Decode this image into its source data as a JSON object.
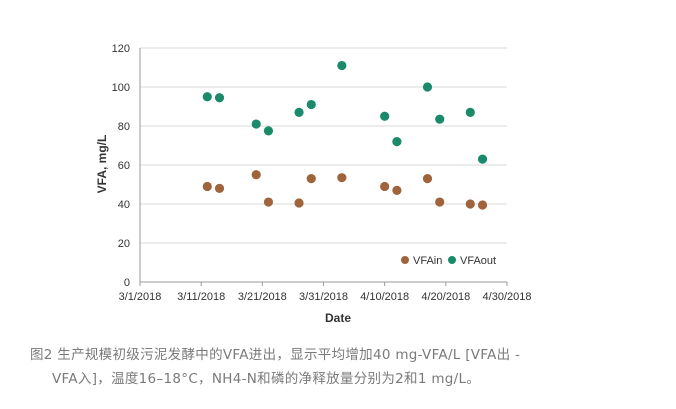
{
  "chart_data": {
    "type": "scatter",
    "xlabel": "Date",
    "ylabel": "VFA, mg/L",
    "ylim": [
      0,
      120
    ],
    "yticks": [
      0,
      20,
      40,
      60,
      80,
      100,
      120
    ],
    "xlim": [
      "2018-03-01",
      "2018-04-30"
    ],
    "xticks": [
      "3/1/2018",
      "3/11/2018",
      "3/21/2018",
      "3/31/2018",
      "4/10/2018",
      "4/20/2018",
      "4/30/2018"
    ],
    "grid": "horizontal",
    "legend_position": "bottom-right",
    "series": [
      {
        "name": "VFAin",
        "color": "#a0643c",
        "points": [
          {
            "x": "2018-03-12",
            "y": 49
          },
          {
            "x": "2018-03-14",
            "y": 48
          },
          {
            "x": "2018-03-20",
            "y": 55
          },
          {
            "x": "2018-03-22",
            "y": 41
          },
          {
            "x": "2018-03-27",
            "y": 40.5
          },
          {
            "x": "2018-03-29",
            "y": 53
          },
          {
            "x": "2018-04-03",
            "y": 53.5
          },
          {
            "x": "2018-04-10",
            "y": 49
          },
          {
            "x": "2018-04-12",
            "y": 47
          },
          {
            "x": "2018-04-17",
            "y": 53
          },
          {
            "x": "2018-04-19",
            "y": 41
          },
          {
            "x": "2018-04-24",
            "y": 40
          },
          {
            "x": "2018-04-26",
            "y": 39.5
          }
        ]
      },
      {
        "name": "VFAout",
        "color": "#1b8a6b",
        "points": [
          {
            "x": "2018-03-12",
            "y": 95
          },
          {
            "x": "2018-03-14",
            "y": 94.5
          },
          {
            "x": "2018-03-20",
            "y": 81
          },
          {
            "x": "2018-03-22",
            "y": 77.5
          },
          {
            "x": "2018-03-27",
            "y": 87
          },
          {
            "x": "2018-03-29",
            "y": 91
          },
          {
            "x": "2018-04-03",
            "y": 111
          },
          {
            "x": "2018-04-10",
            "y": 85
          },
          {
            "x": "2018-04-12",
            "y": 72
          },
          {
            "x": "2018-04-17",
            "y": 100
          },
          {
            "x": "2018-04-19",
            "y": 83.5
          },
          {
            "x": "2018-04-24",
            "y": 87
          },
          {
            "x": "2018-04-26",
            "y": 63
          }
        ]
      }
    ]
  },
  "caption": {
    "line1": "图2  生产规模初级污泥发酵中的VFA进出，显示平均增加40 mg-VFA/L [VFA出 -",
    "line2": "VFA入]，温度16–18°C，NH4-N和磷的净释放量分别为2和1 mg/L。"
  }
}
